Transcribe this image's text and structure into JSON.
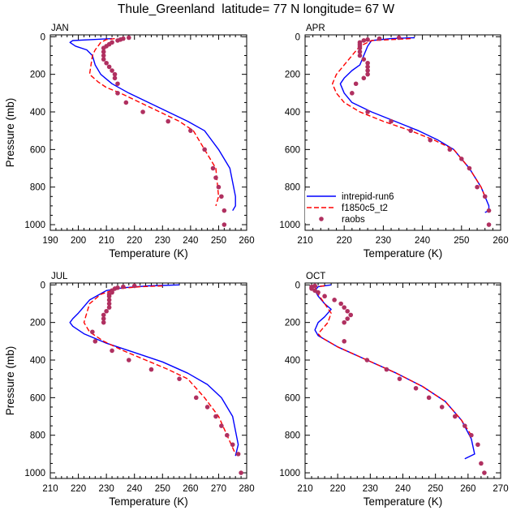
{
  "title": "Thule_Greenland  latitude= 77 N longitude= 67 W",
  "legend": {
    "items": [
      {
        "name": "intrepid-run6",
        "color": "#0000ff",
        "style": "solid"
      },
      {
        "name": "f1850c5_t2",
        "color": "#ff0000",
        "style": "dashed"
      },
      {
        "name": "raobs",
        "color": "#b03060",
        "style": "dots"
      }
    ]
  },
  "chart_data": [
    {
      "type": "line",
      "month": "JAN",
      "xlabel": "Temperature (K)",
      "ylabel": "Pressure (mb)",
      "xlim": [
        190,
        260
      ],
      "ylim": [
        1030,
        -10
      ],
      "xticks": [
        190,
        200,
        210,
        220,
        230,
        240,
        250,
        260
      ],
      "yticks": [
        0,
        200,
        400,
        600,
        800,
        1000
      ],
      "series": [
        {
          "name": "intrepid-run6",
          "x": [
            212,
            205,
            198,
            197,
            199,
            203,
            205,
            206,
            208,
            212,
            218,
            225,
            232,
            239,
            245,
            250,
            254,
            256,
            256,
            255
          ],
          "y": [
            10,
            15,
            20,
            30,
            50,
            70,
            100,
            150,
            200,
            250,
            300,
            350,
            400,
            450,
            500,
            600,
            700,
            850,
            900,
            925
          ]
        },
        {
          "name": "f1850c5_t2",
          "x": [
            213,
            210,
            208,
            207,
            206,
            205,
            204,
            207,
            210,
            215,
            222,
            229,
            236,
            241,
            245,
            249,
            250,
            249
          ],
          "y": [
            10,
            15,
            30,
            50,
            70,
            100,
            200,
            240,
            270,
            300,
            350,
            400,
            450,
            500,
            600,
            700,
            850,
            900
          ]
        },
        {
          "name": "raobs",
          "x": [
            218,
            216,
            215,
            214,
            212,
            211,
            210,
            209,
            209,
            209,
            209,
            210,
            211,
            212,
            213,
            213,
            214,
            214,
            217,
            223,
            232,
            240,
            245,
            248,
            249,
            250,
            251,
            252,
            252
          ],
          "y": [
            5,
            10,
            15,
            20,
            30,
            40,
            50,
            60,
            80,
            100,
            120,
            140,
            160,
            180,
            200,
            220,
            250,
            300,
            350,
            400,
            450,
            500,
            600,
            700,
            750,
            800,
            850,
            925,
            1000
          ]
        }
      ]
    },
    {
      "type": "line",
      "month": "APR",
      "xlabel": "Temperature (K)",
      "ylabel": "Pressure (mb)",
      "xlim": [
        210,
        260
      ],
      "ylim": [
        1030,
        -10
      ],
      "xticks": [
        210,
        220,
        230,
        240,
        250,
        260
      ],
      "yticks": [
        0,
        200,
        400,
        600,
        800,
        1000
      ],
      "series": [
        {
          "name": "intrepid-run6",
          "x": [
            238,
            232,
            227,
            226,
            225,
            224,
            222,
            220,
            219,
            220,
            222,
            227,
            233,
            239,
            244,
            248,
            252,
            255,
            257,
            257,
            256
          ],
          "y": [
            5,
            10,
            20,
            50,
            100,
            150,
            180,
            220,
            250,
            300,
            350,
            400,
            450,
            500,
            550,
            600,
            700,
            800,
            900,
            925,
            935
          ]
        },
        {
          "name": "f1850c5_t2",
          "x": [
            237,
            232,
            227,
            224,
            222,
            220,
            218,
            217,
            218,
            220,
            224,
            230,
            237,
            243,
            248,
            252,
            255,
            256
          ],
          "y": [
            10,
            15,
            20,
            50,
            100,
            150,
            200,
            250,
            300,
            350,
            400,
            450,
            500,
            550,
            600,
            700,
            800,
            850
          ]
        },
        {
          "name": "raobs",
          "x": [
            234,
            229,
            226,
            225,
            224,
            224,
            224,
            224,
            224,
            224,
            225,
            226,
            226,
            226,
            226,
            225,
            223,
            222,
            226,
            232,
            237,
            242,
            247,
            250,
            252,
            254,
            256,
            257,
            257
          ],
          "y": [
            5,
            10,
            15,
            20,
            30,
            40,
            50,
            60,
            80,
            100,
            120,
            140,
            160,
            180,
            200,
            220,
            250,
            300,
            400,
            450,
            500,
            550,
            600,
            650,
            700,
            800,
            850,
            925,
            1000
          ]
        }
      ]
    },
    {
      "type": "line",
      "month": "JUL",
      "xlabel": "Temperature (K)",
      "ylabel": "Pressure (mb)",
      "xlim": [
        210,
        280
      ],
      "ylim": [
        1030,
        -10
      ],
      "xticks": [
        210,
        220,
        230,
        240,
        250,
        260,
        270,
        280
      ],
      "yticks": [
        0,
        200,
        400,
        600,
        800,
        1000
      ],
      "series": [
        {
          "name": "intrepid-run6",
          "x": [
            256,
            245,
            236,
            230,
            224,
            220,
            218,
            217,
            218,
            222,
            230,
            240,
            250,
            259,
            266,
            271,
            275,
            277,
            276
          ],
          "y": [
            0,
            5,
            15,
            30,
            80,
            150,
            180,
            200,
            220,
            260,
            310,
            360,
            410,
            470,
            530,
            600,
            700,
            850,
            910
          ]
        },
        {
          "name": "f1850c5_t2",
          "x": [
            250,
            242,
            234,
            228,
            224,
            223,
            222,
            224,
            229,
            236,
            244,
            252,
            259,
            265,
            270,
            273,
            276
          ],
          "y": [
            5,
            10,
            20,
            50,
            100,
            150,
            200,
            250,
            300,
            350,
            400,
            450,
            500,
            600,
            700,
            800,
            900
          ]
        },
        {
          "name": "raobs",
          "x": [
            240,
            236,
            234,
            233,
            232,
            232,
            231,
            231,
            231,
            231,
            231,
            230,
            229,
            229,
            229,
            225,
            226,
            232,
            238,
            246,
            256,
            262,
            266,
            269,
            271,
            273,
            275,
            277,
            278
          ],
          "y": [
            5,
            10,
            15,
            20,
            30,
            40,
            50,
            60,
            80,
            100,
            120,
            140,
            160,
            180,
            200,
            250,
            300,
            350,
            400,
            450,
            500,
            600,
            650,
            700,
            750,
            800,
            850,
            900,
            1000
          ]
        }
      ]
    },
    {
      "type": "line",
      "month": "OCT",
      "xlabel": "Temperature (K)",
      "ylabel": "Pressure (mb)",
      "xlim": [
        210,
        270
      ],
      "ylim": [
        1030,
        -10
      ],
      "xticks": [
        210,
        220,
        230,
        240,
        250,
        260,
        270
      ],
      "yticks": [
        0,
        200,
        400,
        600,
        800,
        1000
      ],
      "series": [
        {
          "name": "intrepid-run6",
          "x": [
            218,
            214,
            213,
            214,
            216,
            218,
            216,
            214,
            213,
            214,
            220,
            229,
            238,
            246,
            253,
            258,
            261,
            262,
            259
          ],
          "y": [
            0,
            10,
            30,
            60,
            100,
            130,
            170,
            200,
            240,
            270,
            330,
            400,
            470,
            540,
            620,
            720,
            820,
            900,
            925
          ]
        },
        {
          "name": "f1850c5_t2",
          "x": [
            216,
            213,
            214,
            216,
            218,
            217,
            215,
            214,
            215,
            220,
            229,
            238,
            246,
            253,
            258,
            261
          ],
          "y": [
            5,
            10,
            50,
            100,
            150,
            200,
            240,
            260,
            280,
            330,
            400,
            470,
            540,
            620,
            720,
            800
          ]
        },
        {
          "name": "raobs",
          "x": [
            213,
            212,
            212,
            212,
            213,
            214,
            216,
            219,
            221,
            222,
            223,
            224,
            223,
            222,
            222,
            229,
            235,
            239,
            244,
            248,
            252,
            256,
            259,
            261,
            263,
            264,
            265
          ],
          "y": [
            5,
            10,
            15,
            20,
            30,
            40,
            60,
            80,
            100,
            120,
            140,
            160,
            180,
            200,
            300,
            400,
            450,
            500,
            550,
            600,
            650,
            700,
            750,
            800,
            850,
            950,
            1000
          ]
        }
      ]
    }
  ]
}
